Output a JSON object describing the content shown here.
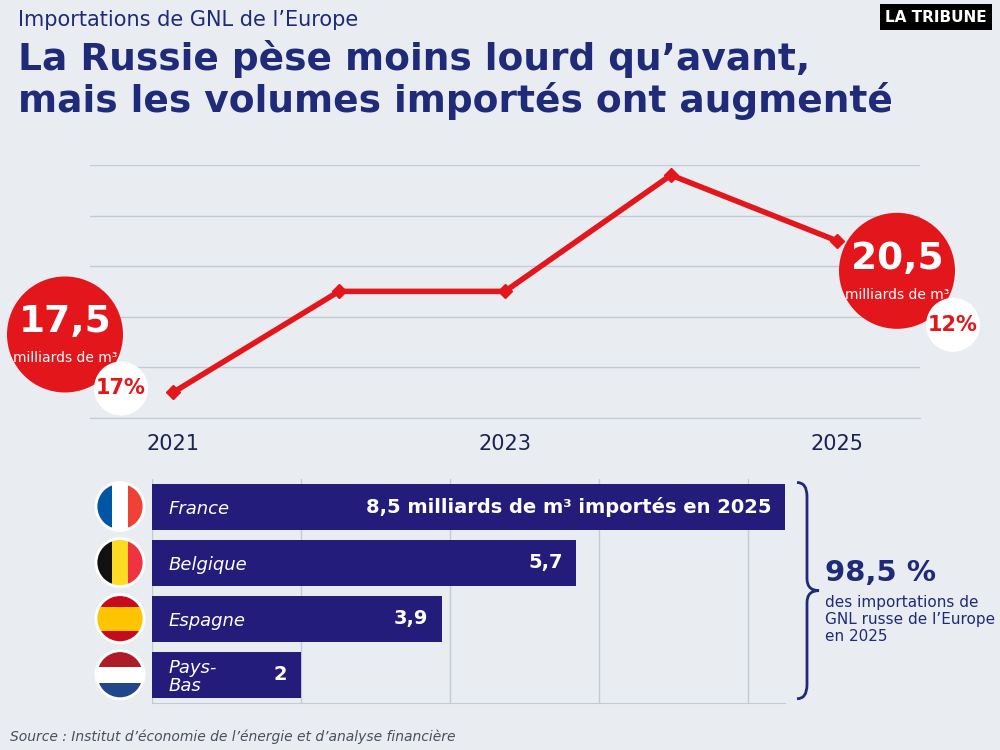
{
  "brand": "LA TRIBUNE",
  "source": "Source : Institut d’économie de l’énergie et d’analyse financière",
  "chart_data": [
    {
      "type": "line",
      "subtitle": "Importations de GNL de l’Europe",
      "title": "La Russie pèse moins lourd qu’avant,\nmais les volumes importés ont augmenté",
      "x": [
        2021,
        2022,
        2023,
        2024,
        2025
      ],
      "values": [
        17.5,
        19.5,
        19.5,
        21.8,
        20.5
      ],
      "value_labels": [
        "17,5",
        null,
        null,
        null,
        "20,5"
      ],
      "unit": "milliards de m³",
      "shares": [
        17,
        null,
        null,
        null,
        12
      ],
      "share_labels": [
        "17%",
        null,
        null,
        null,
        "12%"
      ],
      "color": "#e3161b",
      "marker": "diamond",
      "line_style": "solid",
      "xlim": [
        2020.5,
        2025.5
      ],
      "xticks": [
        2021,
        2023,
        2025
      ],
      "ylim": [
        17,
        22
      ],
      "yticks": [
        17,
        18,
        19,
        20,
        21,
        22
      ],
      "grid": true,
      "tick_labels": "x",
      "data_labels": true
    },
    {
      "type": "bar",
      "orientation": "horizontal",
      "categories": [
        "France",
        "Belgique",
        "Espagne",
        "Pays-\nBas"
      ],
      "values": [
        8.5,
        5.7,
        3.9,
        2
      ],
      "value_labels": [
        "8,5 milliards de m³ importés en 2025",
        "5,7",
        "3,9",
        "2"
      ],
      "color": "#231c7b",
      "xlim": [
        0,
        8.5
      ],
      "xticks": [
        0,
        2,
        4,
        6,
        8
      ],
      "grid": true,
      "tick_labels": "y",
      "data_labels": true,
      "total_share": {
        "value": 98.5,
        "label": "98,5 %",
        "text": "des importations de GNL russe de l’Europe en 2025"
      }
    }
  ]
}
